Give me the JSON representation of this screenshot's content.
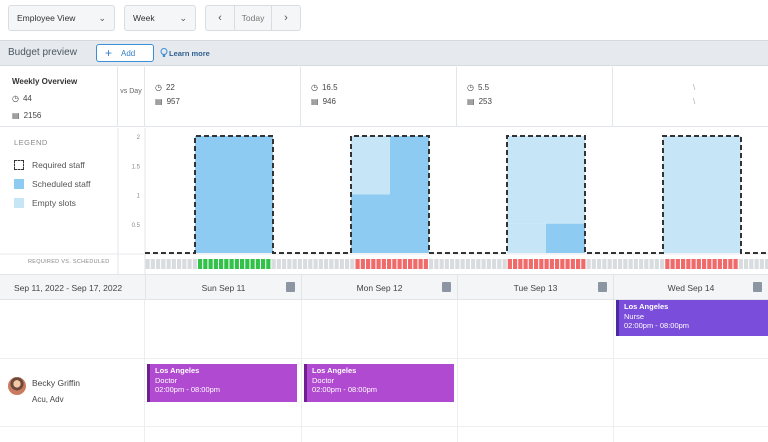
{
  "toolbar": {
    "view_select": "Employee View",
    "period_select": "Week",
    "prev": "‹",
    "today": "Today",
    "next": "›"
  },
  "budget": {
    "title": "Budget preview",
    "add_label": "Add",
    "learn_more": "Learn more"
  },
  "overview": {
    "title": "Weekly Overview",
    "hours": "44",
    "cost": "2156",
    "vs_label": "vs Day",
    "days": [
      {
        "hours": "22",
        "cost": "957"
      },
      {
        "hours": "16.5",
        "cost": "946"
      },
      {
        "hours": "5.5",
        "cost": "253"
      },
      {
        "hours": "\\",
        "cost": "\\"
      }
    ]
  },
  "legend": {
    "title": "LEGEND",
    "items": [
      "Required staff",
      "Scheduled staff",
      "Empty slots"
    ],
    "required_vs_scheduled": "REQUIRED VS. SCHEDULED"
  },
  "chart_data": {
    "type": "bar",
    "y_ticks": [
      "2",
      "1.5",
      "1",
      "0.5"
    ],
    "ylim": [
      0,
      2
    ],
    "categories": [
      "Sun Sep 11",
      "Mon Sep 12",
      "Tue Sep 13",
      "Wed Sep 14"
    ],
    "series": [
      {
        "name": "Required staff",
        "values": [
          2,
          2,
          2,
          2
        ]
      },
      {
        "name": "Scheduled staff",
        "values": [
          2,
          1,
          0.5,
          0
        ]
      },
      {
        "name": "Empty slots",
        "values": [
          0,
          1,
          1.5,
          2
        ]
      }
    ],
    "status": [
      "ok",
      "short",
      "short",
      "short"
    ]
  },
  "colors": {
    "scheduled": "#8ecbf2",
    "empty": "#c6e6f7",
    "ok": "#32c24a",
    "short": "#f06a6a",
    "idle": "#d9dcdf"
  },
  "schedule": {
    "date_range": "Sep 11, 2022 - Sep 17, 2022",
    "days": [
      "Sun Sep 11",
      "Mon Sep 12",
      "Tue Sep 13",
      "Wed Sep 14"
    ],
    "open_shift": {
      "location": "Los Angeles",
      "role": "Nurse",
      "time": "02:00pm - 08:00pm"
    },
    "employee": {
      "name": "Becky Griffin",
      "tags": "Acu, Adv",
      "shifts": [
        {
          "location": "Los Angeles",
          "role": "Doctor",
          "time": "02:00pm - 08:00pm"
        },
        {
          "location": "Los Angeles",
          "role": "Doctor",
          "time": "02:00pm - 08:00pm"
        }
      ]
    }
  }
}
